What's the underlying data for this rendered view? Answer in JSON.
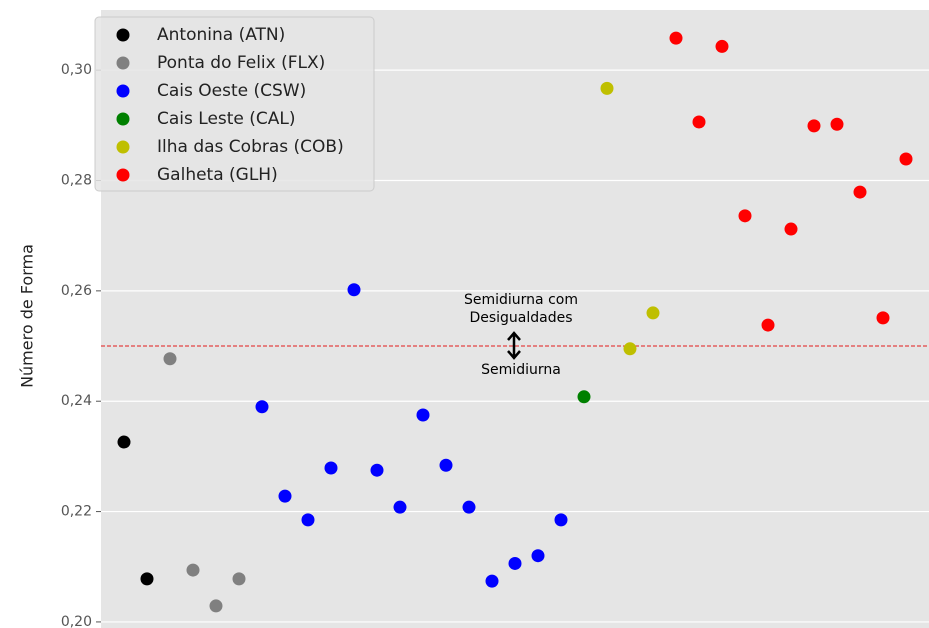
{
  "chart_data": {
    "type": "scatter",
    "ylabel": "Número de Forma",
    "xlim": [
      0,
      36
    ],
    "ylim": [
      0.1989,
      0.3109
    ],
    "yticks": [
      {
        "value": 0.2,
        "label": "0,20"
      },
      {
        "value": 0.22,
        "label": "0,22"
      },
      {
        "value": 0.24,
        "label": "0,24"
      },
      {
        "value": 0.26,
        "label": "0,26"
      },
      {
        "value": 0.28,
        "label": "0,28"
      },
      {
        "value": 0.3,
        "label": "0,30"
      }
    ],
    "grid": true,
    "legend": "upper left",
    "hline": 0.25,
    "hline_color": "#e41a1c",
    "annotation_above": [
      "Semidiurna com",
      "Desigualdades"
    ],
    "annotation_below": "Semidiurna",
    "series": [
      {
        "name": "Antonina (ATN)",
        "color": "#000000",
        "x": [
          1,
          2
        ],
        "values": [
          0.2326,
          0.2078
        ]
      },
      {
        "name": "Ponta do Felix (FLX)",
        "color": "#808080",
        "x": [
          3,
          4,
          5,
          6
        ],
        "values": [
          0.2477,
          0.2094,
          0.2029,
          0.2078
        ]
      },
      {
        "name": "Cais Oeste (CSW)",
        "color": "#0000ff",
        "x": [
          7,
          8,
          9,
          10,
          11,
          12,
          13,
          14,
          15,
          16,
          17,
          18,
          19,
          20
        ],
        "values": [
          0.239,
          0.2228,
          0.2185,
          0.2279,
          0.2602,
          0.2275,
          0.2208,
          0.2375,
          0.2284,
          0.2208,
          0.2074,
          0.2106,
          0.212,
          0.2185
        ]
      },
      {
        "name": "Cais Leste (CAL)",
        "color": "#008000",
        "x": [
          21
        ],
        "values": [
          0.2408
        ]
      },
      {
        "name": "Ilha das Cobras (COB)",
        "color": "#bfbf00",
        "x": [
          22,
          23,
          24
        ],
        "values": [
          0.2967,
          0.2495,
          0.256
        ]
      },
      {
        "name": "Galheta (GLH)",
        "color": "#ff0000",
        "x": [
          25,
          26,
          27,
          28,
          29,
          30,
          31,
          32,
          33,
          34,
          35
        ],
        "values": [
          0.3058,
          0.2906,
          0.3043,
          0.2736,
          0.2538,
          0.2712,
          0.2899,
          0.2902,
          0.2779,
          0.2551,
          0.2839
        ]
      }
    ]
  }
}
